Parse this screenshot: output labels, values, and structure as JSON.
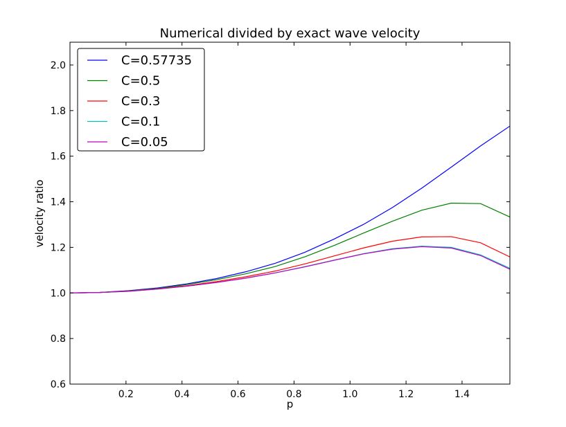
{
  "chart_data": {
    "type": "line",
    "title": "Numerical divided by exact wave velocity",
    "xlabel": "p",
    "ylabel": "velocity ratio",
    "xlim": [
      0.0,
      1.5708
    ],
    "ylim": [
      0.6,
      2.1
    ],
    "xticks": [
      0.2,
      0.4,
      0.6,
      0.8,
      1.0,
      1.2,
      1.4
    ],
    "xtick_labels": [
      "0.2",
      "0.4",
      "0.6",
      "0.8",
      "1.0",
      "1.2",
      "1.4"
    ],
    "yticks": [
      0.6,
      0.8,
      1.0,
      1.2,
      1.4,
      1.6,
      1.8,
      2.0
    ],
    "ytick_labels": [
      "0.6",
      "0.8",
      "1.0",
      "1.2",
      "1.4",
      "1.6",
      "1.8",
      "2.0"
    ],
    "grid": false,
    "legend_position": "top-left",
    "x": [
      0.0,
      0.1047,
      0.2094,
      0.3142,
      0.4189,
      0.5236,
      0.6283,
      0.733,
      0.8378,
      0.9425,
      1.0472,
      1.1519,
      1.2566,
      1.3614,
      1.4661,
      1.5708
    ],
    "series": [
      {
        "name": "C=0.57735",
        "color": "#0000ff",
        "values": [
          1.0,
          1.002,
          1.01,
          1.022,
          1.04,
          1.063,
          1.093,
          1.13,
          1.178,
          1.236,
          1.3,
          1.375,
          1.46,
          1.552,
          1.645,
          1.732
        ]
      },
      {
        "name": "C=0.5",
        "color": "#008000",
        "values": [
          1.0,
          1.002,
          1.009,
          1.02,
          1.037,
          1.058,
          1.084,
          1.116,
          1.158,
          1.208,
          1.262,
          1.315,
          1.363,
          1.394,
          1.392,
          1.333
        ]
      },
      {
        "name": "C=0.3",
        "color": "#ff0000",
        "values": [
          1.0,
          1.002,
          1.008,
          1.018,
          1.032,
          1.05,
          1.071,
          1.096,
          1.127,
          1.162,
          1.197,
          1.227,
          1.246,
          1.247,
          1.22,
          1.158
        ]
      },
      {
        "name": "C=0.1",
        "color": "#00bfbf",
        "values": [
          1.0,
          1.002,
          1.007,
          1.017,
          1.03,
          1.046,
          1.065,
          1.088,
          1.115,
          1.144,
          1.172,
          1.194,
          1.205,
          1.2,
          1.167,
          1.108
        ]
      },
      {
        "name": "C=0.05",
        "color": "#bf00bf",
        "values": [
          1.0,
          1.002,
          1.007,
          1.017,
          1.03,
          1.046,
          1.065,
          1.088,
          1.114,
          1.143,
          1.171,
          1.192,
          1.203,
          1.197,
          1.164,
          1.104
        ]
      }
    ]
  }
}
